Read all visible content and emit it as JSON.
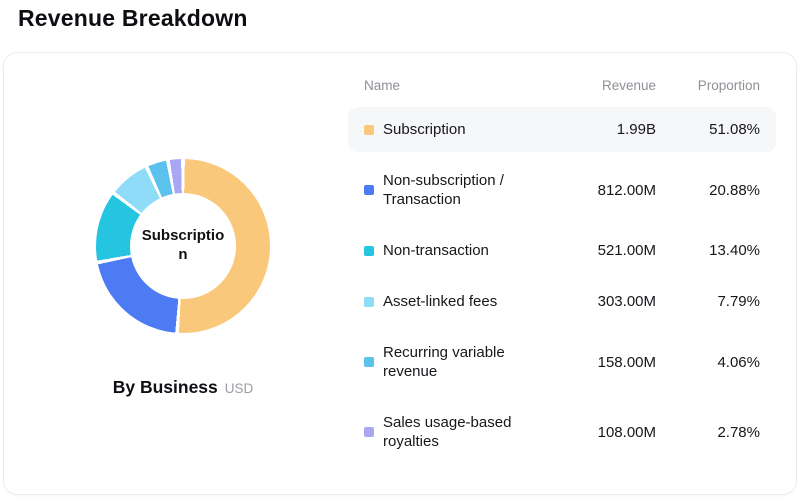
{
  "page": {
    "title": "Revenue Breakdown"
  },
  "table": {
    "headers": {
      "name": "Name",
      "revenue": "Revenue",
      "proportion": "Proportion"
    }
  },
  "chart_data": {
    "type": "pie",
    "donut": true,
    "title": "By Business",
    "unit": "USD",
    "center_label": "Subscription",
    "legend_position": "right-table",
    "slices": [
      {
        "name": "Subscription",
        "revenue": "1.99B",
        "proportion": "51.08%",
        "value": 51.08,
        "color": "#FAC87A",
        "active": true
      },
      {
        "name": "Non-subscription / Transaction",
        "revenue": "812.00M",
        "proportion": "20.88%",
        "value": 20.88,
        "color": "#4D7BF3",
        "active": false
      },
      {
        "name": "Non-transaction",
        "revenue": "521.00M",
        "proportion": "13.40%",
        "value": 13.4,
        "color": "#25C4E1",
        "active": false
      },
      {
        "name": "Asset-linked fees",
        "revenue": "303.00M",
        "proportion": "7.79%",
        "value": 7.79,
        "color": "#8EDCF8",
        "active": false
      },
      {
        "name": "Recurring variable revenue",
        "revenue": "158.00M",
        "proportion": "4.06%",
        "value": 4.06,
        "color": "#5BC2EE",
        "active": false
      },
      {
        "name": "Sales usage-based royalties",
        "revenue": "108.00M",
        "proportion": "2.78%",
        "value": 2.78,
        "color": "#A9A7F4",
        "active": false
      }
    ]
  }
}
